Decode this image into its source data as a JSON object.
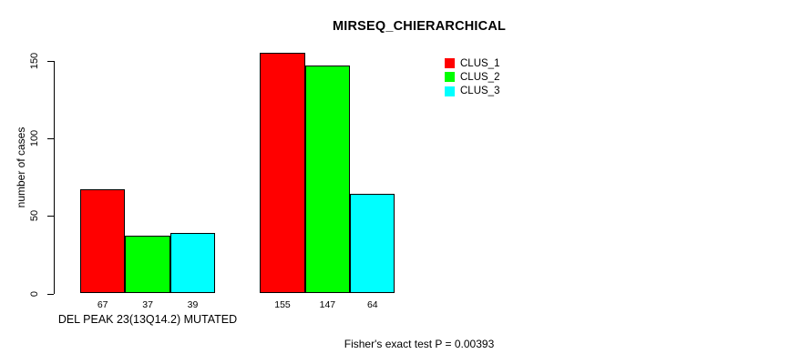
{
  "chart_data": {
    "type": "bar",
    "title": "MIRSEQ_CHIERARCHICAL",
    "ylabel": "number of cases",
    "xlabel": "",
    "ylim": [
      0,
      150
    ],
    "yticks": [
      0,
      50,
      100,
      150
    ],
    "categories": [
      "DEL PEAK 23(13Q14.2) MUTATED",
      ""
    ],
    "series": [
      {
        "name": "CLUS_1",
        "color": "#FF0000",
        "values": [
          67,
          155
        ]
      },
      {
        "name": "CLUS_2",
        "color": "#00FF00",
        "values": [
          37,
          147
        ]
      },
      {
        "name": "CLUS_3",
        "color": "#00FFFF",
        "values": [
          39,
          64
        ]
      }
    ],
    "bar_value_labels_shown": true,
    "annotation": "Fisher's exact test P = 0.00393",
    "legend_position": "top-right",
    "grid": false,
    "background_color": "#FFFFFF",
    "axis_color": "#000000"
  }
}
